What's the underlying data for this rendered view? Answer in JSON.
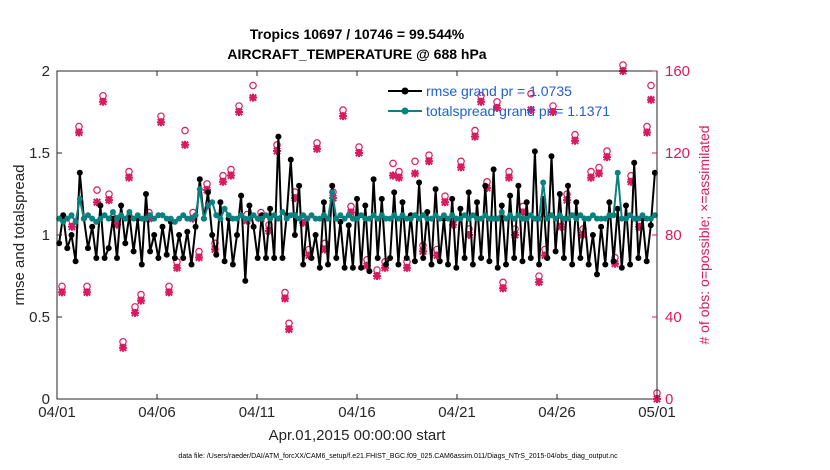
{
  "chart_data": {
    "type": "line",
    "title_line1": "Tropics 10697 / 10746 = 99.544%",
    "title_line2": "AIRCRAFT_TEMPERATURE @ 688 hPa",
    "ylabel_left": "rmse and totalspread",
    "ylabel_right": "# of obs: o=possible; ×=assimilated",
    "xlabel": "Apr.01,2015 00:00:00 start",
    "footnote": "data file: /Users/raeder/DAI/ATM_forcXX/CAM6_setup/f.e21.FHIST_BGC.f09_025.CAM6assim.011/Diags_NTrS_2015-04/obs_diag_output.nc",
    "xlim": [
      0,
      30
    ],
    "ylim_left": [
      0,
      2
    ],
    "ylim_right": [
      0,
      160
    ],
    "x_ticks": [
      0,
      5,
      10,
      15,
      20,
      25,
      30
    ],
    "x_tick_labels": [
      "04/01",
      "04/06",
      "04/11",
      "04/16",
      "04/21",
      "04/26",
      "05/01"
    ],
    "y_left_ticks": [
      0,
      0.5,
      1,
      1.5,
      2
    ],
    "y_left_tick_labels": [
      "0",
      "0.5",
      "1",
      "1.5",
      "2"
    ],
    "y_right_ticks": [
      0,
      40,
      80,
      120,
      160
    ],
    "y_right_tick_labels": [
      "0",
      "40",
      "80",
      "120",
      "160"
    ],
    "legend": [
      {
        "label": "rmse grand pr = 1.0735",
        "color": "#000000"
      },
      {
        "label": "totalspread grand pr = 1.1371",
        "color": "#0d8080"
      }
    ],
    "series": [
      {
        "name": "rmse",
        "color": "#000000",
        "axis": "left",
        "values": [
          0.95,
          1.12,
          0.92,
          1.0,
          0.84,
          1.38,
          1.1,
          0.92,
          1.05,
          0.86,
          1.18,
          0.86,
          0.92,
          1.1,
          0.86,
          1.18,
          0.95,
          1.12,
          0.9,
          1.1,
          0.82,
          1.25,
          0.9,
          1.0,
          0.86,
          1.05,
          0.88,
          1.08,
          0.86,
          1.0,
          0.86,
          1.02,
          0.82,
          1.05,
          1.34,
          1.1,
          1.26,
          1.0,
          0.88,
          1.2,
          0.84,
          1.1,
          0.82,
          1.0,
          1.24,
          0.72,
          1.18,
          1.05,
          0.86,
          1.12,
          0.86,
          1.16,
          0.86,
          1.6,
          0.86,
          1.12,
          1.46,
          1.0,
          1.3,
          0.82,
          1.1,
          0.86,
          1.0,
          0.8,
          1.2,
          0.82,
          1.3,
          0.86,
          1.08,
          0.8,
          1.06,
          0.8,
          1.22,
          0.8,
          1.18,
          0.78,
          1.34,
          0.86,
          1.22,
          0.82,
          0.86,
          1.26,
          0.82,
          1.2,
          0.86,
          1.12,
          0.84,
          1.32,
          0.86,
          1.14,
          0.82,
          1.28,
          0.84,
          1.1,
          0.82,
          1.22,
          0.8,
          1.16,
          0.86,
          1.26,
          0.82,
          1.2,
          0.86,
          1.3,
          0.84,
          1.4,
          0.8,
          1.18,
          0.82,
          1.24,
          0.86,
          1.3,
          0.84,
          1.2,
          0.86,
          1.51,
          0.82,
          1.22,
          0.86,
          1.48,
          0.9,
          1.25,
          0.86,
          1.3,
          0.82,
          1.2,
          0.86,
          1.1,
          0.82,
          1.0,
          0.76,
          1.05,
          0.82,
          1.2,
          0.84,
          1.16,
          0.8,
          1.18,
          0.82,
          1.44,
          0.86,
          1.1,
          0.84,
          1.06,
          1.38
        ]
      },
      {
        "name": "totalspread",
        "color": "#0d8080",
        "axis": "left",
        "values": [
          1.1,
          1.08,
          1.1,
          1.12,
          1.08,
          1.22,
          1.1,
          1.12,
          1.1,
          1.08,
          1.1,
          1.12,
          1.1,
          1.14,
          1.1,
          1.12,
          1.1,
          1.14,
          1.1,
          1.12,
          1.1,
          1.1,
          1.12,
          1.1,
          1.12,
          1.12,
          1.1,
          1.1,
          1.08,
          1.1,
          1.12,
          1.1,
          1.1,
          1.12,
          1.28,
          1.1,
          1.18,
          1.2,
          1.12,
          1.1,
          1.16,
          1.12,
          1.1,
          1.1,
          1.12,
          1.1,
          1.1,
          1.12,
          1.1,
          1.1,
          1.12,
          1.1,
          1.12,
          1.1,
          1.14,
          1.1,
          1.12,
          1.12,
          1.1,
          1.12,
          1.1,
          1.12,
          1.1,
          1.1,
          1.12,
          1.1,
          1.26,
          1.1,
          1.12,
          1.1,
          1.12,
          1.1,
          1.1,
          1.12,
          1.1,
          1.1,
          1.12,
          1.1,
          1.12,
          1.1,
          1.1,
          1.12,
          1.1,
          1.12,
          1.1,
          1.1,
          1.12,
          1.1,
          1.12,
          1.1,
          1.1,
          1.12,
          1.1,
          1.12,
          1.1,
          1.12,
          1.1,
          1.1,
          1.12,
          1.1,
          1.12,
          1.1,
          1.1,
          1.12,
          1.1,
          1.1,
          1.1,
          1.14,
          1.1,
          1.12,
          1.1,
          1.12,
          1.1,
          1.1,
          1.12,
          1.1,
          1.1,
          1.32,
          1.1,
          1.12,
          1.1,
          1.12,
          1.1,
          1.1,
          1.12,
          1.1,
          1.12,
          1.1,
          1.1,
          1.12,
          1.1,
          1.1,
          1.1,
          1.12,
          1.12,
          1.38,
          1.1,
          1.1,
          1.12,
          1.1,
          1.1,
          1.12,
          1.1,
          1.1,
          1.12
        ]
      },
      {
        "name": "obs_possible",
        "marker": "o",
        "color": "#d81b60",
        "axis": "right",
        "points": [
          [
            0.25,
            52
          ],
          [
            0.75,
            84
          ],
          [
            1.1,
            130
          ],
          [
            1.5,
            52
          ],
          [
            2.0,
            99
          ],
          [
            2.3,
            145
          ],
          [
            2.6,
            97
          ],
          [
            3.0,
            85
          ],
          [
            3.3,
            25
          ],
          [
            3.6,
            108
          ],
          [
            3.9,
            42
          ],
          [
            4.2,
            48
          ],
          [
            4.6,
            88
          ],
          [
            5.2,
            135
          ],
          [
            5.6,
            52
          ],
          [
            6.0,
            64
          ],
          [
            6.4,
            128
          ],
          [
            6.8,
            88
          ],
          [
            7.1,
            69
          ],
          [
            7.5,
            102
          ],
          [
            7.9,
            73
          ],
          [
            8.3,
            106
          ],
          [
            8.7,
            109
          ],
          [
            9.1,
            140
          ],
          [
            9.5,
            87
          ],
          [
            9.8,
            150
          ],
          [
            10.2,
            88
          ],
          [
            10.6,
            82
          ],
          [
            11.0,
            121
          ],
          [
            11.4,
            49
          ],
          [
            11.6,
            34
          ],
          [
            11.9,
            98
          ],
          [
            12.3,
            86
          ],
          [
            12.6,
            70
          ],
          [
            13.0,
            122
          ],
          [
            13.4,
            73
          ],
          [
            13.8,
            98
          ],
          [
            14.3,
            138
          ],
          [
            14.7,
            91
          ],
          [
            15.1,
            120
          ],
          [
            15.5,
            65
          ],
          [
            16.0,
            60
          ],
          [
            16.4,
            64
          ],
          [
            16.8,
            112
          ],
          [
            17.1,
            108
          ],
          [
            17.5,
            64
          ],
          [
            17.9,
            113
          ],
          [
            18.3,
            72
          ],
          [
            18.6,
            116
          ],
          [
            19.0,
            70
          ],
          [
            19.4,
            96
          ],
          [
            19.8,
            85
          ],
          [
            20.2,
            113
          ],
          [
            20.6,
            80
          ],
          [
            20.9,
            128
          ],
          [
            21.2,
            145
          ],
          [
            21.5,
            103
          ],
          [
            22.0,
            142
          ],
          [
            22.3,
            54
          ],
          [
            22.6,
            108
          ],
          [
            22.9,
            80
          ],
          [
            23.3,
            91
          ],
          [
            23.7,
            146
          ],
          [
            24.1,
            57
          ],
          [
            24.4,
            70
          ],
          [
            24.8,
            140
          ],
          [
            25.2,
            84
          ],
          [
            25.5,
            97
          ],
          [
            25.9,
            126
          ],
          [
            26.3,
            80
          ],
          [
            26.7,
            108
          ],
          [
            27.1,
            110
          ],
          [
            27.5,
            118
          ],
          [
            27.9,
            66
          ],
          [
            28.3,
            160
          ],
          [
            28.7,
            106
          ],
          [
            29.1,
            84
          ],
          [
            29.5,
            130
          ],
          [
            29.7,
            150
          ],
          [
            30.0,
            0
          ]
        ]
      },
      {
        "name": "obs_assimilated",
        "marker": "x",
        "color": "#d81b60",
        "axis": "right",
        "points": [
          [
            0.25,
            52
          ],
          [
            0.75,
            84
          ],
          [
            1.1,
            130
          ],
          [
            1.5,
            52
          ],
          [
            2.0,
            96
          ],
          [
            2.3,
            145
          ],
          [
            2.6,
            97
          ],
          [
            3.0,
            85
          ],
          [
            3.3,
            25
          ],
          [
            3.6,
            108
          ],
          [
            3.9,
            42
          ],
          [
            4.2,
            48
          ],
          [
            4.6,
            88
          ],
          [
            5.2,
            135
          ],
          [
            5.6,
            52
          ],
          [
            6.0,
            64
          ],
          [
            6.4,
            124
          ],
          [
            6.8,
            88
          ],
          [
            7.1,
            69
          ],
          [
            7.5,
            102
          ],
          [
            7.9,
            73
          ],
          [
            8.3,
            106
          ],
          [
            8.7,
            109
          ],
          [
            9.1,
            140
          ],
          [
            9.5,
            87
          ],
          [
            9.8,
            147
          ],
          [
            10.2,
            88
          ],
          [
            10.6,
            82
          ],
          [
            11.0,
            121
          ],
          [
            11.4,
            49
          ],
          [
            11.6,
            34
          ],
          [
            11.9,
            98
          ],
          [
            12.3,
            86
          ],
          [
            12.6,
            70
          ],
          [
            13.0,
            122
          ],
          [
            13.4,
            73
          ],
          [
            13.8,
            98
          ],
          [
            14.3,
            138
          ],
          [
            14.7,
            91
          ],
          [
            15.1,
            120
          ],
          [
            15.5,
            65
          ],
          [
            16.0,
            60
          ],
          [
            16.4,
            64
          ],
          [
            16.8,
            109
          ],
          [
            17.1,
            108
          ],
          [
            17.5,
            64
          ],
          [
            17.9,
            110
          ],
          [
            18.3,
            72
          ],
          [
            18.6,
            116
          ],
          [
            19.0,
            70
          ],
          [
            19.4,
            96
          ],
          [
            19.8,
            85
          ],
          [
            20.2,
            113
          ],
          [
            20.6,
            80
          ],
          [
            20.9,
            128
          ],
          [
            21.2,
            145
          ],
          [
            21.5,
            103
          ],
          [
            22.0,
            142
          ],
          [
            22.3,
            54
          ],
          [
            22.6,
            108
          ],
          [
            22.9,
            80
          ],
          [
            23.3,
            91
          ],
          [
            23.7,
            141
          ],
          [
            24.1,
            57
          ],
          [
            24.4,
            70
          ],
          [
            24.8,
            140
          ],
          [
            25.2,
            84
          ],
          [
            25.5,
            97
          ],
          [
            25.9,
            126
          ],
          [
            26.3,
            80
          ],
          [
            26.7,
            108
          ],
          [
            27.1,
            110
          ],
          [
            27.5,
            118
          ],
          [
            27.9,
            66
          ],
          [
            28.3,
            160
          ],
          [
            28.7,
            106
          ],
          [
            29.1,
            84
          ],
          [
            29.5,
            130
          ],
          [
            29.7,
            146
          ],
          [
            30.0,
            0
          ]
        ]
      }
    ]
  }
}
